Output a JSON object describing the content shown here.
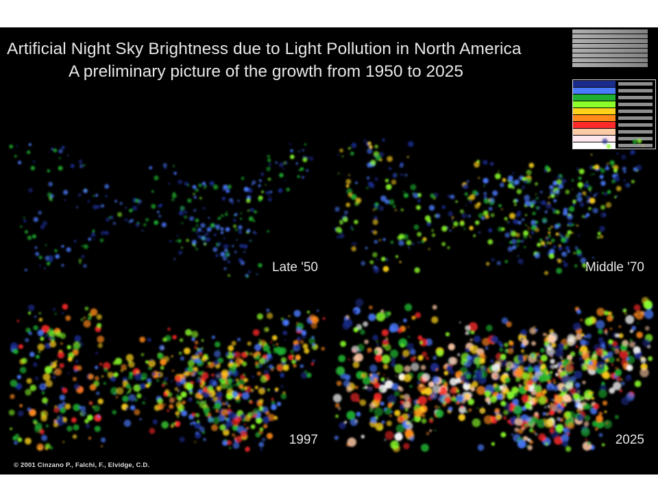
{
  "title": {
    "line1": "Artificial Night Sky Brightness due to Light Pollution in North America",
    "line2": "A preliminary picture of the growth from 1950 to 2025"
  },
  "panels": [
    {
      "label": "Late '50",
      "intensity": 0.18
    },
    {
      "label": "Middle '70",
      "intensity": 0.38
    },
    {
      "label": "1997",
      "intensity": 0.66
    },
    {
      "label": "2025",
      "intensity": 0.95
    }
  ],
  "legend": {
    "colors": [
      "#000000",
      "#1a2b8c",
      "#4a7bff",
      "#1fae2f",
      "#8cff2a",
      "#ffd21a",
      "#ff8a1a",
      "#ff2a2a",
      "#ffcaa6",
      "#ffe8ee",
      "#ffffff"
    ]
  },
  "credit": "© 2001  Cinzano P., Falchi, F., Elvidge, C.D."
}
